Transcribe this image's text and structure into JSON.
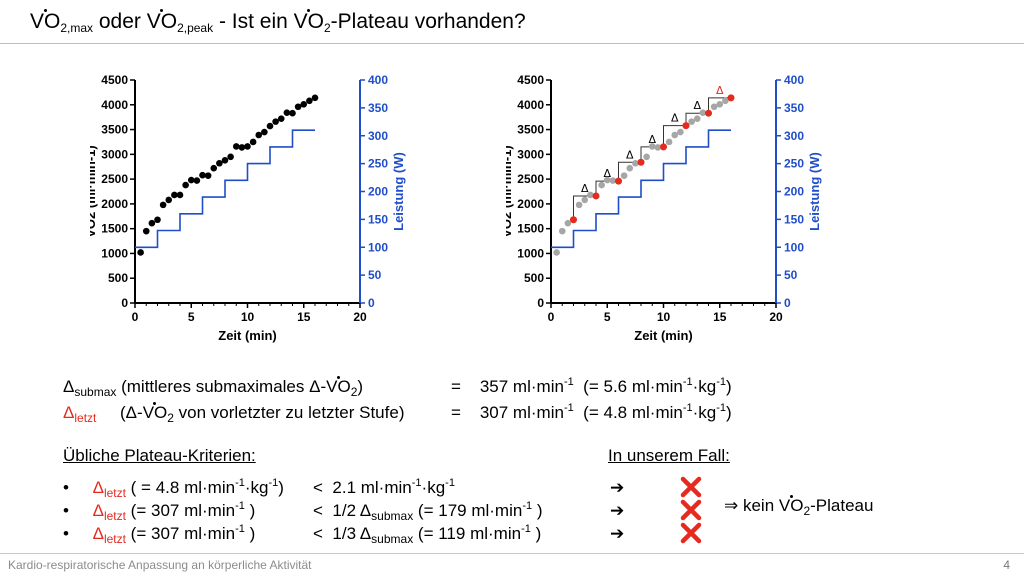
{
  "title": {
    "v1": "VO",
    "s1": "2,max",
    "mid": " oder ",
    "v2": "VO",
    "s2": "2,peak",
    "mid2": " - Ist ein ",
    "v3": "VO",
    "s3": "2",
    "end": "-Plateau vorhanden?"
  },
  "colors": {
    "blue": "#1f4ec8",
    "red": "#e52a1f",
    "grey": "#a6a6a6",
    "black": "#000000"
  },
  "chart_data": [
    {
      "type": "scatter",
      "xlabel": "Zeit (min)",
      "ylabel": "VO2 (ml·min-1)",
      "y2label": "Leistung (W)",
      "xlim": [
        0,
        20
      ],
      "ylim": [
        0,
        4500
      ],
      "y2lim": [
        0,
        400
      ],
      "x_ticks": [
        "0",
        "5",
        "10",
        "15",
        "20"
      ],
      "y_ticks": [
        "0",
        "500",
        "1000",
        "1500",
        "2000",
        "2500",
        "3000",
        "3500",
        "4000",
        "4500"
      ],
      "y2_ticks": [
        "0",
        "50",
        "100",
        "150",
        "200",
        "250",
        "300",
        "350",
        "400"
      ],
      "series": [
        {
          "x": [
            0.5,
            1,
            1.5,
            2,
            2.5,
            3,
            3.5,
            4,
            4.5,
            5,
            5.5,
            6,
            6.5,
            7,
            7.5,
            8,
            8.5,
            9,
            9.5,
            10,
            10.5,
            11,
            11.5,
            12,
            12.5,
            13,
            13.5,
            14,
            14.5,
            15,
            15.5,
            16
          ],
          "values": [
            1020,
            1450,
            1610,
            1680,
            1980,
            2080,
            2180,
            2180,
            2380,
            2480,
            2470,
            2580,
            2570,
            2720,
            2820,
            2880,
            2950,
            3160,
            3140,
            3160,
            3250,
            3390,
            3450,
            3570,
            3660,
            3720,
            3840,
            3830,
            3960,
            4010,
            4080,
            4140
          ],
          "color": "#000000"
        },
        {
          "type": "step",
          "x": [
            0,
            2,
            2,
            4,
            4,
            6,
            6,
            8,
            8,
            10,
            10,
            12,
            12,
            14,
            14,
            16
          ],
          "values": [
            100,
            100,
            130,
            130,
            160,
            160,
            190,
            190,
            220,
            220,
            250,
            250,
            280,
            280,
            310,
            310
          ],
          "color": "#1f4ec8"
        }
      ]
    },
    {
      "type": "scatter",
      "xlabel": "Zeit (min)",
      "ylabel": "VO2 (ml·min-1)",
      "y2label": "Leistung (W)",
      "xlim": [
        0,
        20
      ],
      "ylim": [
        0,
        4500
      ],
      "y2lim": [
        0,
        400
      ],
      "x_ticks": [
        "0",
        "5",
        "10",
        "15",
        "20"
      ],
      "y_ticks": [
        "0",
        "500",
        "1000",
        "1500",
        "2000",
        "2500",
        "3000",
        "3500",
        "4000",
        "4500"
      ],
      "y2_ticks": [
        "0",
        "50",
        "100",
        "150",
        "200",
        "250",
        "300",
        "350",
        "400"
      ],
      "stage_end_points": [
        {
          "x": 2,
          "y": 1680
        },
        {
          "x": 4,
          "y": 2160
        },
        {
          "x": 6,
          "y": 2460
        },
        {
          "x": 8,
          "y": 2840
        },
        {
          "x": 10,
          "y": 3150
        },
        {
          "x": 12,
          "y": 3580
        },
        {
          "x": 14,
          "y": 3830
        },
        {
          "x": 16,
          "y": 4140
        }
      ],
      "delta_label": "Δ",
      "series": [
        {
          "x": [
            0.5,
            1,
            1.5,
            2,
            2.5,
            3,
            3.5,
            4,
            4.5,
            5,
            5.5,
            6,
            6.5,
            7,
            7.5,
            8,
            8.5,
            9,
            9.5,
            10,
            10.5,
            11,
            11.5,
            12,
            12.5,
            13,
            13.5,
            14,
            14.5,
            15,
            15.5,
            16
          ],
          "values": [
            1020,
            1450,
            1610,
            1680,
            1980,
            2080,
            2180,
            2160,
            2380,
            2480,
            2470,
            2460,
            2570,
            2720,
            2820,
            2840,
            2950,
            3160,
            3140,
            3150,
            3250,
            3390,
            3450,
            3580,
            3660,
            3720,
            3840,
            3830,
            3960,
            4010,
            4080,
            4140
          ],
          "color": "#a6a6a6"
        },
        {
          "type": "step",
          "x": [
            0,
            2,
            2,
            4,
            4,
            6,
            6,
            8,
            8,
            10,
            10,
            12,
            12,
            14,
            14,
            16
          ],
          "values": [
            100,
            100,
            130,
            130,
            160,
            160,
            190,
            190,
            220,
            220,
            250,
            250,
            280,
            280,
            310,
            310
          ],
          "color": "#1f4ec8"
        }
      ]
    }
  ],
  "summary": {
    "sub": {
      "d": "Δ",
      "s": "submax",
      "t1": " (mittleres submaximales Δ-",
      "v": "VO",
      "s2": "2",
      "t2": ")",
      "eq": "=",
      "val": "357 ml·min",
      "exp": "-1",
      "t3": "(= 5.6 ml·min",
      "exp2": "-1",
      "t4": "·kg",
      "exp3": "-1",
      "t5": ")"
    },
    "letzt": {
      "d": "Δ",
      "s": "letzt",
      "t1": "(Δ-",
      "v": "VO",
      "s2": "2",
      "t2": " von vorletzter zu letzter Stufe)",
      "eq": "=",
      "val": "307 ml·min",
      "exp": "-1",
      "t3": "(= 4.8 ml·min",
      "exp2": "-1",
      "t4": "·kg",
      "exp3": "-1",
      "t5": ")"
    }
  },
  "criteria": {
    "heading": "Übliche Plateau-Kriterien:",
    "case_heading": "In unserem Fall:",
    "items": [
      {
        "bullet": "•",
        "d": "Δ",
        "s": "letzt",
        "a": " ( = 4.8 ml·min",
        "ae": "-1",
        "b": "·kg",
        "be": "-1",
        "c": ")",
        "op": "<",
        "r1": "2.1 ml·min",
        "r1e": "-1",
        "r2": "·kg",
        "r2e": "-1",
        "r3": "",
        "arrow": "➔"
      },
      {
        "bullet": "•",
        "d": "Δ",
        "s": "letzt",
        "a": " (= 307 ml·min",
        "ae": "-1",
        "b": " )",
        "be": "",
        "c": "",
        "op": "<",
        "r1": "1/2 Δ",
        "r1e": "",
        "r2": "submax",
        "r2e": "",
        "r3": " (= 179 ml·min",
        "r3e": "-1",
        "r4": " )",
        "arrow": "➔"
      },
      {
        "bullet": "•",
        "d": "Δ",
        "s": "letzt",
        "a": " (= 307 ml·min",
        "ae": "-1",
        "b": " )",
        "be": "",
        "c": "",
        "op": "<",
        "r1": "1/3 Δ",
        "r1e": "",
        "r2": "submax",
        "r2e": "",
        "r3": " (= 119 ml·min",
        "r3e": "-1",
        "r4": " )",
        "arrow": "➔"
      }
    ],
    "conclusion": {
      "pre": "⇒ kein ",
      "v": "VO",
      "s": "2",
      "post": "-Plateau"
    }
  },
  "footer": "Kardio-respiratorische Anpassung an körperliche Aktivität",
  "page_number": "4"
}
